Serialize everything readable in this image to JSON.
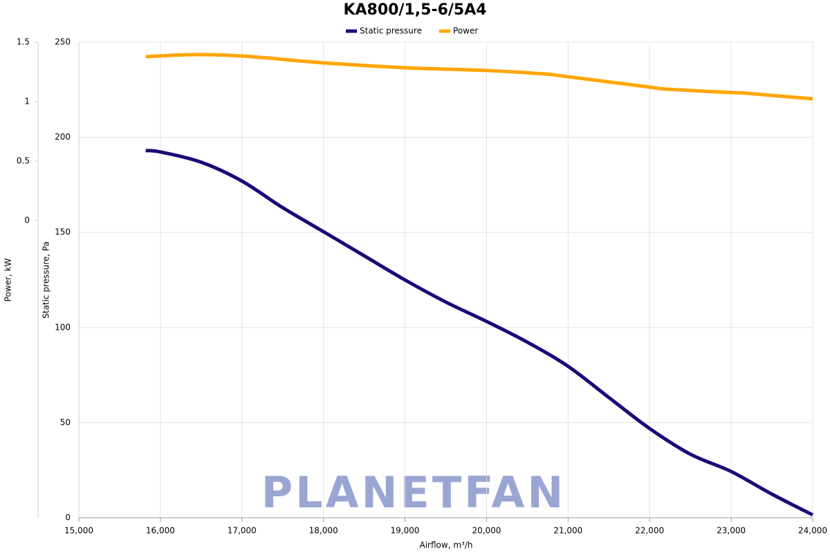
{
  "chart_data": {
    "type": "line",
    "title": "KA800/1,5-6/5A4",
    "xlabel": "Airflow, m³/h",
    "ylabel": "Static pressure, Pa",
    "y2label": "Power, kW",
    "watermark": "PLANETFAN",
    "grid": true,
    "legend": "top",
    "xlim": [
      15000,
      24000
    ],
    "xticks": [
      {
        "value": 15000,
        "label": "15,000"
      },
      {
        "value": 16000,
        "label": "16,000"
      },
      {
        "value": 17000,
        "label": "17,000"
      },
      {
        "value": 18000,
        "label": "18,000"
      },
      {
        "value": 19000,
        "label": "19,000"
      },
      {
        "value": 20000,
        "label": "20,000"
      },
      {
        "value": 21000,
        "label": "21,000"
      },
      {
        "value": 22000,
        "label": "22,000"
      },
      {
        "value": 23000,
        "label": "23,000"
      },
      {
        "value": 24000,
        "label": "24,000"
      }
    ],
    "ylim": [
      0,
      250
    ],
    "yticks": [
      0,
      50,
      100,
      150,
      200,
      250
    ],
    "y2lim": [
      -2.5,
      1.5
    ],
    "y2ticks": [
      0,
      0.5,
      1,
      1.5
    ],
    "series": [
      {
        "name": "Static pressure",
        "color": "#1a0a78",
        "x": [
          15820,
          16000,
          16500,
          17000,
          17500,
          18000,
          18500,
          19000,
          19500,
          20000,
          20500,
          21000,
          21500,
          22000,
          22500,
          23000,
          23500,
          24000
        ],
        "values": [
          193,
          192.3,
          186.9,
          177,
          163,
          150.4,
          137.7,
          125,
          113.4,
          103.2,
          92.3,
          79.6,
          63.2,
          46.9,
          33.4,
          24.3,
          12.4,
          1.5
        ]
      },
      {
        "name": "Power",
        "color": "#ffa500",
        "axis": "y2",
        "x": [
          15820,
          16400,
          17000,
          18000,
          19000,
          20000,
          20700,
          21000,
          22000,
          22200,
          23000,
          23200,
          24000
        ],
        "values": [
          1.378,
          1.395,
          1.384,
          1.326,
          1.285,
          1.262,
          1.233,
          1.209,
          1.122,
          1.105,
          1.076,
          1.07,
          1.023
        ]
      }
    ]
  }
}
